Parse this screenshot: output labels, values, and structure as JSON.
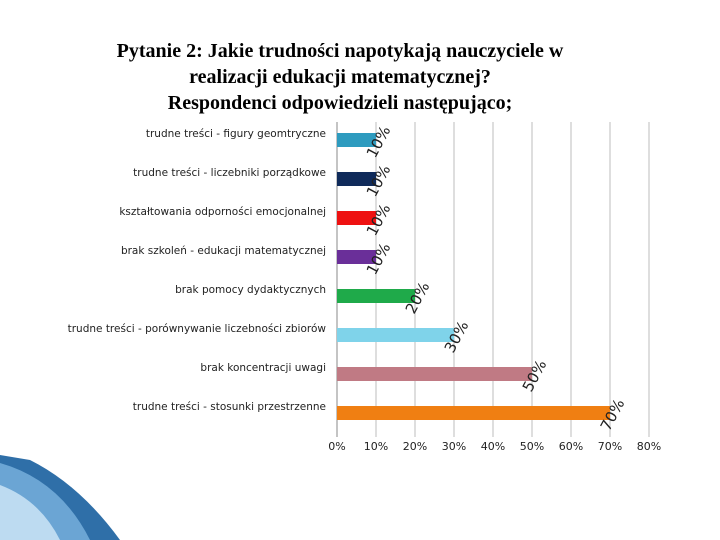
{
  "title": {
    "line1": "Pytanie 2: Jakie trudności napotykają nauczyciele w",
    "line2": "realizacji edukacji matematycznej?",
    "line3": "Respondenci odpowiedzieli następująco;"
  },
  "chart_data": {
    "type": "bar",
    "orientation": "horizontal",
    "categories": [
      "trudne treści - figury geomtryczne",
      "trudne treści - liczebniki porządkowe",
      "kształtowania odporności emocjonalnej",
      "brak szkoleń - edukacji matematycznej",
      "brak pomocy dydaktycznych",
      "trudne treści - porównywanie liczebności zbiorów",
      "brak koncentracji uwagi",
      "trudne treści - stosunki przestrzenne"
    ],
    "values": [
      10,
      10,
      10,
      10,
      20,
      30,
      50,
      70
    ],
    "data_labels": [
      "10%",
      "10%",
      "10%",
      "10%",
      "20%",
      "30%",
      "50%",
      "70%"
    ],
    "colors": [
      "#2e9bbf",
      "#0f2a5a",
      "#ee1111",
      "#6a2f99",
      "#1faa4a",
      "#7fd3ea",
      "#c07a84",
      "#f07f12"
    ],
    "xlim": [
      0,
      80
    ],
    "x_ticks": [
      "0%",
      "10%",
      "20%",
      "30%",
      "40%",
      "50%",
      "60%",
      "70%",
      "80%"
    ],
    "grid": true,
    "legend": "none"
  }
}
